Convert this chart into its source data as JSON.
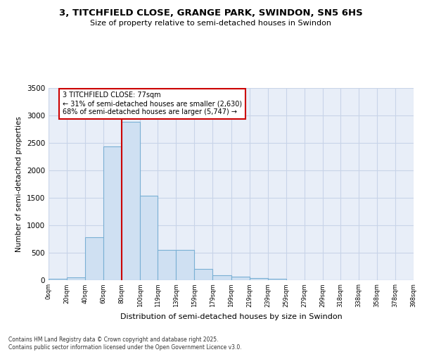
{
  "title1": "3, TITCHFIELD CLOSE, GRANGE PARK, SWINDON, SN5 6HS",
  "title2": "Size of property relative to semi-detached houses in Swindon",
  "xlabel": "Distribution of semi-detached houses by size in Swindon",
  "ylabel": "Number of semi-detached properties",
  "bins": [
    "0sqm",
    "20sqm",
    "40sqm",
    "60sqm",
    "80sqm",
    "100sqm",
    "119sqm",
    "139sqm",
    "159sqm",
    "179sqm",
    "199sqm",
    "219sqm",
    "239sqm",
    "259sqm",
    "279sqm",
    "299sqm",
    "318sqm",
    "338sqm",
    "358sqm",
    "378sqm",
    "398sqm"
  ],
  "bin_edges": [
    0,
    20,
    40,
    60,
    80,
    100,
    119,
    139,
    159,
    179,
    199,
    219,
    239,
    259,
    279,
    299,
    318,
    338,
    358,
    378,
    398
  ],
  "bar_heights": [
    20,
    50,
    780,
    2430,
    2880,
    1530,
    540,
    540,
    200,
    85,
    60,
    35,
    20,
    0,
    0,
    0,
    0,
    0,
    0,
    0
  ],
  "bar_color": "#cfe0f2",
  "bar_edgecolor": "#7ab0d4",
  "property_size": 80,
  "pct_smaller": 31,
  "count_smaller": 2630,
  "pct_larger": 68,
  "count_larger": 5747,
  "vline_color": "#cc0000",
  "annotation_box_color": "#cc0000",
  "ylim": [
    0,
    3500
  ],
  "yticks": [
    0,
    500,
    1000,
    1500,
    2000,
    2500,
    3000,
    3500
  ],
  "grid_color": "#c8d4e8",
  "background_color": "#e8eef8",
  "footer1": "Contains HM Land Registry data © Crown copyright and database right 2025.",
  "footer2": "Contains public sector information licensed under the Open Government Licence v3.0."
}
